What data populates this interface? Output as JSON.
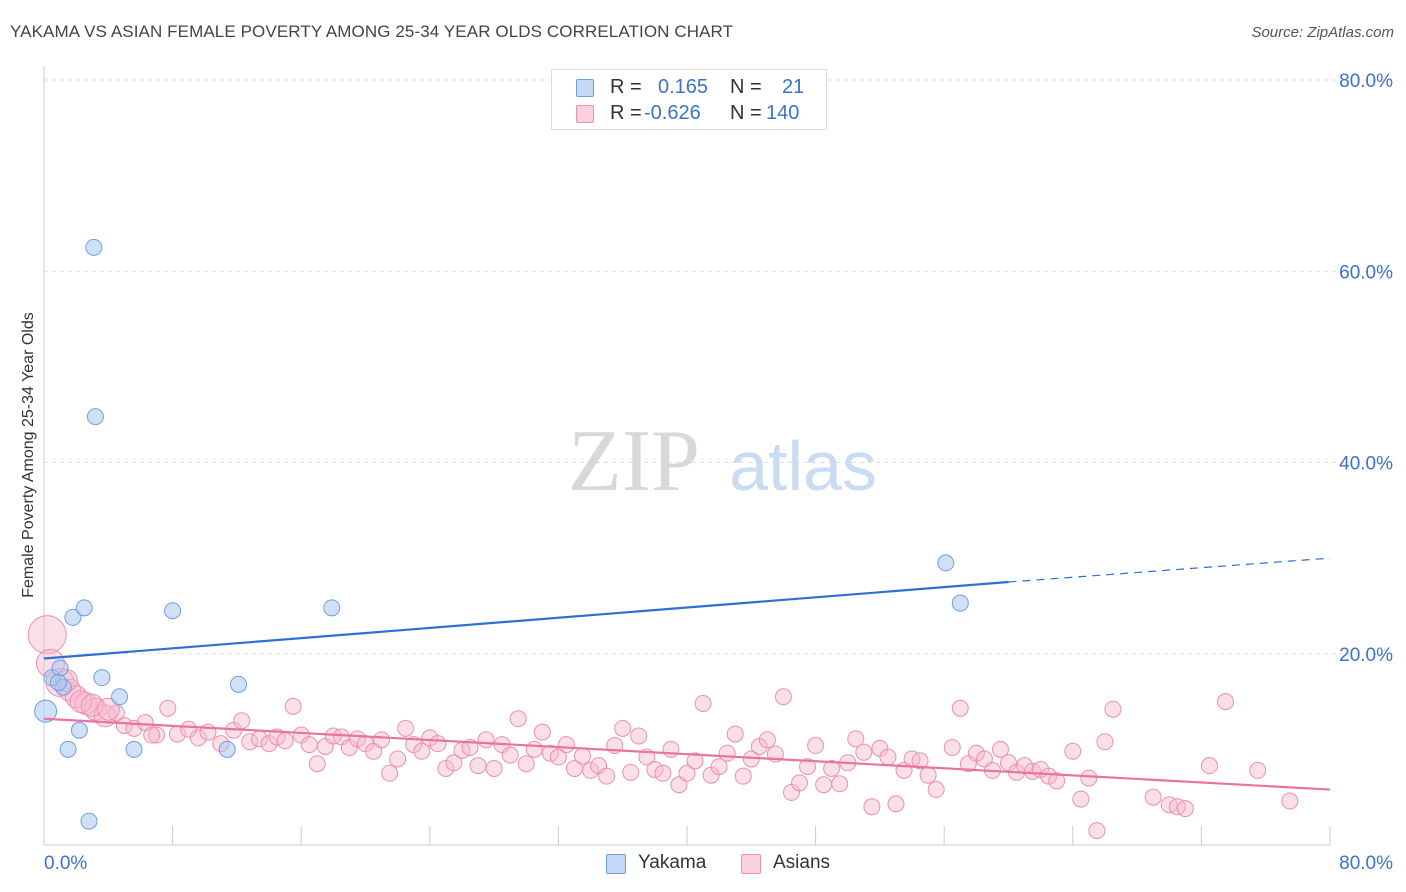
{
  "title": "YAKAMA VS ASIAN FEMALE POVERTY AMONG 25-34 YEAR OLDS CORRELATION CHART",
  "source": "Source: ZipAtlas.com",
  "watermark": {
    "zip": "ZIP",
    "atlas": "atlas"
  },
  "legend_top": {
    "rows": [
      {
        "r_label": "R =",
        "r_value": "0.165",
        "n_label": "N =",
        "n_value": "21"
      },
      {
        "r_label": "R =",
        "r_value": "-0.626",
        "n_label": "N =",
        "n_value": "140"
      }
    ]
  },
  "legend_bottom": {
    "yakama": "Yakama",
    "asians": "Asians"
  },
  "colors": {
    "yakama_fill": "#aac8f0",
    "yakama_stroke": "#6f9fe0",
    "yakama_line": "#2f6fd1",
    "asians_fill": "#f7b9cd",
    "asians_stroke": "#ec8fb0",
    "asians_line": "#e8739e",
    "axis_text": "#3b73c9",
    "grid": "#dddddd"
  },
  "chart_data": {
    "type": "scatter",
    "title": "YAKAMA VS ASIAN FEMALE POVERTY AMONG 25-34 YEAR OLDS CORRELATION CHART",
    "xlabel": "",
    "ylabel": "Female Poverty Among 25-34 Year Olds",
    "xlim": [
      0,
      80
    ],
    "ylim": [
      0,
      80
    ],
    "x_tick_labels": [
      "0.0%",
      "80.0%"
    ],
    "y_tick_labels": [
      "20.0%",
      "40.0%",
      "60.0%",
      "80.0%"
    ],
    "y_ticks": [
      20,
      40,
      60,
      80
    ],
    "grid": true,
    "legend_placement": "top-center",
    "series": [
      {
        "name": "Yakama",
        "r": 0.165,
        "n": 21,
        "trend": {
          "x0": 0,
          "y0": 19.5,
          "x1": 60,
          "y1": 27.5,
          "dashed_to_x": 80,
          "dashed_to_y": 30.0
        },
        "points": [
          [
            3.1,
            62.5
          ],
          [
            3.2,
            44.8
          ],
          [
            0.1,
            14.0
          ],
          [
            0.5,
            17.5
          ],
          [
            1.0,
            18.5
          ],
          [
            1.2,
            16.5
          ],
          [
            1.5,
            10.0
          ],
          [
            1.8,
            23.8
          ],
          [
            2.2,
            12.0
          ],
          [
            2.5,
            24.8
          ],
          [
            3.6,
            17.5
          ],
          [
            4.7,
            15.5
          ],
          [
            5.6,
            10.0
          ],
          [
            8.0,
            24.5
          ],
          [
            11.4,
            10.0
          ],
          [
            12.1,
            16.8
          ],
          [
            17.9,
            24.8
          ],
          [
            57.0,
            25.3
          ],
          [
            56.1,
            29.5
          ],
          [
            2.8,
            2.5
          ],
          [
            0.9,
            17.0
          ]
        ],
        "sizes": [
          1,
          1,
          2,
          1,
          1,
          1,
          1,
          1,
          1,
          1,
          1,
          1,
          1,
          1,
          1,
          1,
          1,
          1,
          1,
          1,
          1
        ]
      },
      {
        "name": "Asians",
        "r": -0.626,
        "n": 140,
        "trend": {
          "x0": 0,
          "y0": 13.2,
          "x1": 80,
          "y1": 5.8
        },
        "points": [
          [
            0.2,
            22.0
          ],
          [
            0.4,
            19.0
          ],
          [
            1.0,
            17.0
          ],
          [
            1.6,
            16.2
          ],
          [
            2.0,
            15.5
          ],
          [
            2.6,
            14.8
          ],
          [
            3.2,
            14.2
          ],
          [
            3.8,
            13.5
          ],
          [
            4.5,
            13.8
          ],
          [
            5.0,
            12.5
          ],
          [
            5.6,
            12.2
          ],
          [
            6.3,
            12.8
          ],
          [
            7.0,
            11.5
          ],
          [
            7.7,
            14.3
          ],
          [
            8.3,
            11.6
          ],
          [
            9.0,
            12.1
          ],
          [
            9.6,
            11.2
          ],
          [
            10.2,
            11.8
          ],
          [
            11.0,
            10.6
          ],
          [
            11.8,
            12.0
          ],
          [
            12.3,
            13.0
          ],
          [
            12.8,
            10.8
          ],
          [
            13.4,
            11.1
          ],
          [
            14.0,
            10.6
          ],
          [
            14.5,
            11.3
          ],
          [
            15.0,
            10.9
          ],
          [
            15.5,
            14.5
          ],
          [
            16.0,
            11.5
          ],
          [
            16.5,
            10.5
          ],
          [
            17.0,
            8.5
          ],
          [
            17.5,
            10.3
          ],
          [
            18.0,
            11.4
          ],
          [
            18.5,
            11.3
          ],
          [
            19.0,
            10.2
          ],
          [
            19.5,
            11.1
          ],
          [
            20.0,
            10.6
          ],
          [
            20.5,
            9.8
          ],
          [
            21.0,
            11.0
          ],
          [
            21.5,
            7.5
          ],
          [
            22.0,
            9.0
          ],
          [
            22.5,
            12.2
          ],
          [
            23.0,
            10.5
          ],
          [
            23.5,
            9.8
          ],
          [
            24.0,
            11.2
          ],
          [
            24.5,
            10.6
          ],
          [
            25.0,
            8.0
          ],
          [
            25.5,
            8.6
          ],
          [
            26.0,
            9.9
          ],
          [
            26.5,
            10.2
          ],
          [
            27.0,
            8.3
          ],
          [
            27.5,
            11.0
          ],
          [
            28.0,
            8.0
          ],
          [
            28.5,
            10.5
          ],
          [
            29.0,
            9.4
          ],
          [
            29.5,
            13.2
          ],
          [
            30.0,
            8.5
          ],
          [
            30.5,
            10.0
          ],
          [
            31.0,
            11.8
          ],
          [
            31.5,
            9.6
          ],
          [
            32.0,
            9.2
          ],
          [
            32.5,
            10.5
          ],
          [
            33.0,
            8.0
          ],
          [
            33.5,
            9.3
          ],
          [
            34.0,
            7.8
          ],
          [
            34.5,
            8.3
          ],
          [
            35.0,
            7.2
          ],
          [
            35.5,
            10.4
          ],
          [
            36.0,
            12.2
          ],
          [
            36.5,
            7.6
          ],
          [
            37.0,
            11.4
          ],
          [
            37.5,
            9.2
          ],
          [
            38.0,
            7.9
          ],
          [
            38.5,
            7.5
          ],
          [
            39.0,
            10.0
          ],
          [
            39.5,
            6.3
          ],
          [
            40.0,
            7.5
          ],
          [
            40.5,
            8.8
          ],
          [
            41.0,
            14.8
          ],
          [
            41.5,
            7.3
          ],
          [
            42.0,
            8.2
          ],
          [
            42.5,
            9.6
          ],
          [
            43.0,
            11.6
          ],
          [
            43.5,
            7.2
          ],
          [
            44.0,
            9.0
          ],
          [
            44.5,
            10.3
          ],
          [
            45.0,
            11.0
          ],
          [
            45.5,
            9.5
          ],
          [
            46.0,
            15.5
          ],
          [
            46.5,
            5.5
          ],
          [
            47.0,
            6.5
          ],
          [
            47.5,
            8.2
          ],
          [
            48.0,
            10.4
          ],
          [
            48.5,
            6.3
          ],
          [
            49.0,
            8.0
          ],
          [
            49.5,
            6.4
          ],
          [
            50.0,
            8.6
          ],
          [
            50.5,
            11.1
          ],
          [
            51.0,
            9.7
          ],
          [
            51.5,
            4.0
          ],
          [
            52.0,
            10.1
          ],
          [
            52.5,
            9.2
          ],
          [
            53.0,
            4.3
          ],
          [
            53.5,
            7.8
          ],
          [
            54.0,
            9.0
          ],
          [
            54.5,
            8.8
          ],
          [
            55.0,
            7.3
          ],
          [
            55.5,
            5.8
          ],
          [
            56.5,
            10.2
          ],
          [
            57.0,
            14.3
          ],
          [
            57.5,
            8.5
          ],
          [
            58.0,
            9.6
          ],
          [
            58.5,
            9.0
          ],
          [
            59.0,
            7.8
          ],
          [
            59.5,
            10.0
          ],
          [
            60.0,
            8.6
          ],
          [
            60.5,
            7.6
          ],
          [
            61.0,
            8.3
          ],
          [
            61.5,
            7.7
          ],
          [
            62.0,
            7.9
          ],
          [
            62.5,
            7.2
          ],
          [
            63.0,
            6.7
          ],
          [
            64.0,
            9.8
          ],
          [
            64.5,
            4.8
          ],
          [
            65.0,
            7.0
          ],
          [
            65.5,
            1.5
          ],
          [
            66.0,
            10.8
          ],
          [
            66.5,
            14.2
          ],
          [
            69.0,
            5.0
          ],
          [
            70.0,
            4.2
          ],
          [
            70.5,
            4.0
          ],
          [
            71.0,
            3.8
          ],
          [
            72.5,
            8.3
          ],
          [
            73.5,
            15.0
          ],
          [
            75.5,
            7.8
          ],
          [
            77.5,
            4.6
          ],
          [
            1.4,
            17.2
          ],
          [
            2.3,
            15.0
          ],
          [
            3.0,
            14.6
          ],
          [
            4.0,
            14.2
          ],
          [
            6.7,
            11.5
          ]
        ],
        "sizes": [
          4,
          3,
          3,
          2,
          2,
          2,
          2,
          2,
          1,
          1,
          1,
          1,
          1,
          1,
          1,
          1,
          1,
          1,
          1,
          1,
          1,
          1,
          1,
          1,
          1,
          1,
          1,
          1,
          1,
          1,
          1,
          1,
          1,
          1,
          1,
          1,
          1,
          1,
          1,
          1,
          1,
          1,
          1,
          1,
          1,
          1,
          1,
          1,
          1,
          1,
          1,
          1,
          1,
          1,
          1,
          1,
          1,
          1,
          1,
          1,
          1,
          1,
          1,
          1,
          1,
          1,
          1,
          1,
          1,
          1,
          1,
          1,
          1,
          1,
          1,
          1,
          1,
          1,
          1,
          1,
          1,
          1,
          1,
          1,
          1,
          1,
          1,
          1,
          1,
          1,
          1,
          1,
          1,
          1,
          1,
          1,
          1,
          1,
          1,
          1,
          1,
          1,
          1,
          1,
          1,
          1,
          1,
          1,
          1,
          1,
          1,
          1,
          1,
          1,
          1,
          1,
          1,
          1,
          1,
          1,
          1,
          1,
          1,
          1,
          1,
          1,
          1,
          1,
          1,
          1,
          1,
          1,
          1,
          1,
          1,
          2,
          2,
          2,
          2,
          1
        ]
      }
    ]
  }
}
